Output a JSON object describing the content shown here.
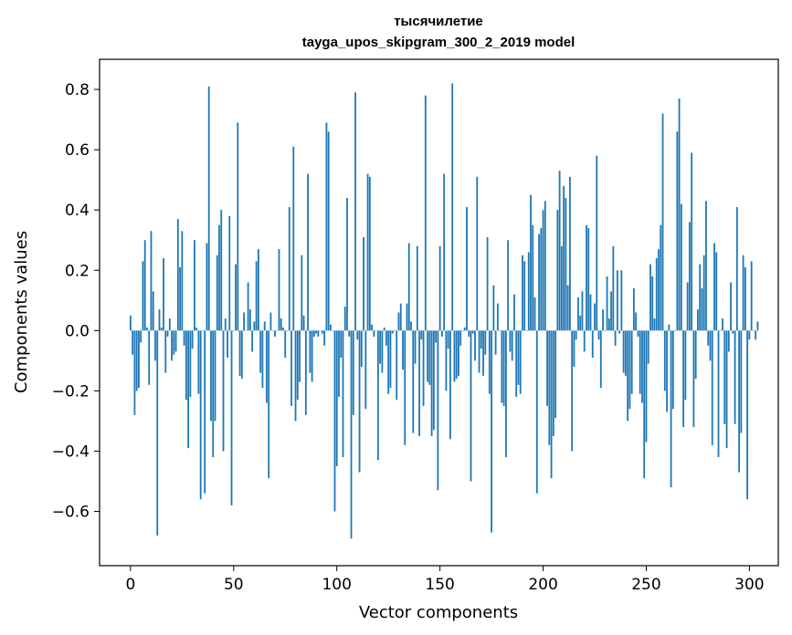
{
  "chart_data": {
    "type": "bar",
    "title": "тысячилетие",
    "subtitle": "tayga_upos_skipgram_300_2_2019 model",
    "xlabel": "Vector components",
    "ylabel": "Components values",
    "xlim": [
      -15,
      314
    ],
    "ylim": [
      -0.78,
      0.9
    ],
    "xticks": [
      0,
      50,
      100,
      150,
      200,
      250,
      300
    ],
    "xtick_labels": [
      "0",
      "50",
      "100",
      "150",
      "200",
      "250",
      "300"
    ],
    "yticks": [
      -0.6,
      -0.4,
      -0.2,
      0.0,
      0.2,
      0.4,
      0.6,
      0.8
    ],
    "ytick_labels": [
      "−0.6",
      "−0.4",
      "−0.2",
      "0.0",
      "0.2",
      "0.4",
      "0.6",
      "0.8"
    ],
    "grid": false,
    "bar_color": "#1f77b4",
    "values": [
      0.05,
      -0.08,
      -0.28,
      -0.2,
      -0.19,
      -0.04,
      0.23,
      0.3,
      0.01,
      -0.18,
      0.33,
      0.13,
      -0.1,
      -0.68,
      0.07,
      0.01,
      0.24,
      -0.14,
      -0.02,
      0.04,
      -0.1,
      -0.08,
      -0.07,
      0.37,
      0.21,
      0.33,
      -0.05,
      -0.23,
      -0.39,
      -0.22,
      -0.06,
      0.3,
      0.01,
      -0.21,
      -0.56,
      0.0,
      -0.54,
      0.29,
      0.81,
      -0.3,
      -0.42,
      -0.3,
      0.25,
      0.35,
      0.4,
      -0.4,
      0.04,
      -0.09,
      0.38,
      -0.58,
      0.0,
      0.22,
      0.69,
      -0.15,
      -0.16,
      0.06,
      0.0,
      0.16,
      0.07,
      -0.07,
      0.03,
      0.23,
      0.27,
      -0.14,
      -0.19,
      0.03,
      -0.24,
      -0.49,
      0.06,
      0.0,
      -0.02,
      0.0,
      0.27,
      0.04,
      0.01,
      -0.09,
      0.0,
      0.41,
      -0.25,
      0.61,
      -0.3,
      -0.23,
      -0.17,
      0.25,
      0.05,
      -0.28,
      0.52,
      -0.14,
      -0.17,
      -0.02,
      -0.01,
      -0.02,
      0.0,
      -0.01,
      -0.05,
      0.69,
      0.66,
      0.02,
      0.0,
      -0.6,
      -0.45,
      -0.22,
      -0.09,
      -0.42,
      0.08,
      0.44,
      -0.02,
      -0.69,
      -0.28,
      0.79,
      -0.03,
      -0.47,
      -0.12,
      0.31,
      -0.26,
      0.52,
      0.51,
      0.02,
      -0.02,
      0.0,
      -0.43,
      -0.11,
      -0.14,
      0.01,
      -0.05,
      -0.21,
      -0.19,
      -0.01,
      0.0,
      -0.23,
      0.06,
      0.09,
      -0.13,
      -0.38,
      0.09,
      0.29,
      0.03,
      -0.34,
      -0.11,
      0.28,
      -0.35,
      -0.03,
      -0.25,
      0.78,
      -0.17,
      -0.18,
      -0.35,
      -0.33,
      -0.04,
      -0.53,
      0.28,
      -0.02,
      0.52,
      -0.2,
      -0.06,
      -0.36,
      0.82,
      -0.17,
      -0.16,
      -0.15,
      -0.05,
      0.0,
      0.01,
      0.41,
      -0.02,
      -0.5,
      -0.01,
      -0.1,
      0.51,
      -0.14,
      -0.06,
      -0.15,
      -0.08,
      0.31,
      -0.21,
      -0.67,
      0.15,
      -0.08,
      0.09,
      0.0,
      -0.24,
      -0.25,
      -0.42,
      0.3,
      -0.07,
      -0.1,
      0.12,
      -0.22,
      -0.18,
      -0.21,
      0.25,
      0.23,
      0.0,
      0.26,
      0.45,
      0.35,
      0.11,
      -0.54,
      0.32,
      0.34,
      0.4,
      0.43,
      -0.25,
      -0.38,
      -0.49,
      -0.35,
      -0.29,
      0.4,
      0.53,
      0.28,
      0.48,
      0.44,
      0.15,
      0.51,
      -0.4,
      -0.12,
      -0.03,
      0.11,
      0.05,
      0.13,
      -0.07,
      0.35,
      0.34,
      0.12,
      -0.09,
      0.09,
      0.58,
      -0.03,
      -0.19,
      0.07,
      0.0,
      0.18,
      0.04,
      0.13,
      0.28,
      -0.05,
      0.2,
      -0.01,
      0.2,
      -0.14,
      -0.15,
      -0.3,
      -0.26,
      -0.21,
      0.14,
      0.06,
      -0.02,
      -0.21,
      -0.24,
      -0.49,
      -0.37,
      -0.11,
      0.22,
      0.18,
      0.04,
      0.24,
      0.27,
      0.35,
      0.72,
      -0.2,
      -0.27,
      0.02,
      -0.52,
      -0.26,
      0.0,
      0.66,
      0.77,
      0.42,
      -0.32,
      -0.23,
      0.16,
      0.36,
      0.59,
      -0.32,
      -0.16,
      0.07,
      0.22,
      0.14,
      0.25,
      0.43,
      -0.05,
      -0.1,
      -0.38,
      0.29,
      0.26,
      -0.42,
      0.0,
      0.04,
      -0.31,
      -0.39,
      -0.07,
      0.16,
      -0.01,
      -0.31,
      0.41,
      -0.47,
      -0.34,
      0.25,
      0.21,
      -0.56,
      -0.03,
      0.23,
      0.0,
      -0.03,
      0.03
    ]
  }
}
